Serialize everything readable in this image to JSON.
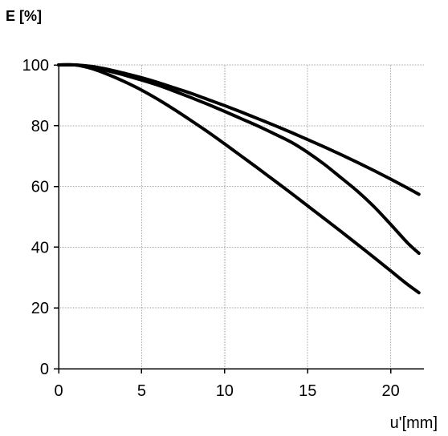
{
  "chart_data": {
    "type": "line",
    "title": "",
    "ylabel": "E [%]",
    "xlabel": "u'[mm]",
    "xlim": [
      0,
      22
    ],
    "ylim": [
      0,
      100
    ],
    "xticks": [
      0,
      5,
      10,
      15,
      20
    ],
    "yticks": [
      0,
      20,
      40,
      60,
      80,
      100
    ],
    "xtick_labels": [
      "0",
      "5",
      "10",
      "15",
      "20"
    ],
    "ytick_labels": [
      "0",
      "20",
      "40",
      "60",
      "80",
      "100"
    ],
    "grid": true,
    "line_color": "#000000",
    "grid_color": "#a9a9a9",
    "series": [
      {
        "x": [
          0,
          1,
          2,
          3,
          4,
          5,
          6,
          7,
          8,
          9,
          10,
          11,
          12,
          13,
          14,
          15,
          16,
          17,
          18,
          19,
          20,
          21,
          21.7
        ],
        "y": [
          100,
          100,
          99.5,
          98.5,
          97.2,
          95.8,
          94.2,
          92.4,
          90.6,
          88.6,
          86.6,
          84.5,
          82.3,
          80.1,
          77.8,
          75.4,
          73.0,
          70.5,
          67.9,
          65.2,
          62.4,
          59.5,
          57.4
        ]
      },
      {
        "x": [
          0,
          1,
          2,
          3,
          4,
          5,
          6,
          7,
          8,
          9,
          10,
          11,
          12,
          13,
          14,
          15,
          16,
          17,
          18,
          19,
          20,
          21,
          21.7
        ],
        "y": [
          100,
          100,
          99.3,
          98.0,
          96.6,
          95.0,
          93.3,
          91.3,
          89.2,
          87.0,
          84.7,
          82.3,
          79.9,
          77.3,
          74.6,
          71.2,
          67.3,
          62.9,
          58.4,
          53.3,
          47.5,
          41.5,
          38.0
        ]
      },
      {
        "x": [
          0,
          1,
          2,
          3,
          4,
          5,
          6,
          7,
          8,
          9,
          10,
          11,
          12,
          13,
          14,
          15,
          16,
          17,
          18,
          19,
          20,
          21,
          21.7
        ],
        "y": [
          100,
          100,
          98.8,
          96.8,
          94.4,
          91.7,
          88.6,
          85.2,
          81.6,
          77.9,
          74.0,
          70.0,
          66.0,
          61.9,
          57.8,
          53.6,
          49.4,
          45.2,
          40.9,
          36.6,
          32.2,
          27.8,
          25.0
        ]
      }
    ]
  }
}
